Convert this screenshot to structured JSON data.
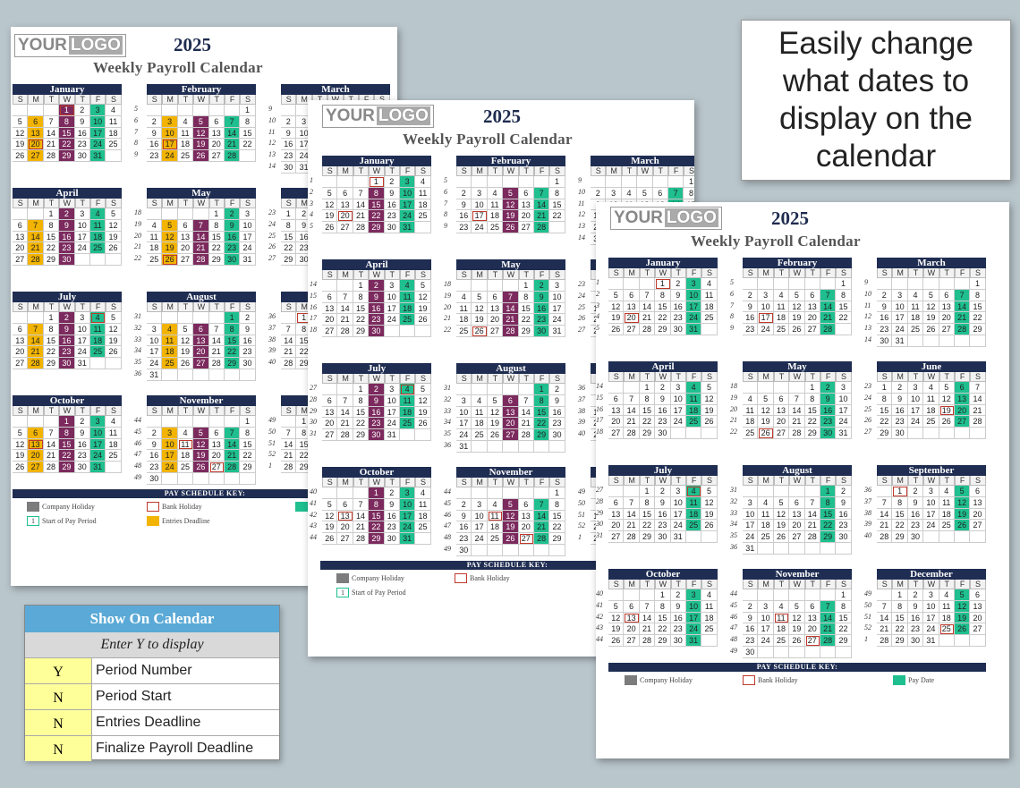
{
  "year": "2025",
  "title": "Weekly Payroll Calendar",
  "logo": {
    "part1": "YOUR",
    "part2": "LOGO"
  },
  "day_headers": [
    "S",
    "M",
    "T",
    "W",
    "T",
    "F",
    "S"
  ],
  "callout": "Easily change what dates to display on the calendar",
  "show_panel": {
    "header": "Show On Calendar",
    "subheader": "Enter Y to display",
    "rows": [
      {
        "value": "Y",
        "label": "Period Number"
      },
      {
        "value": "N",
        "label": "Period Start"
      },
      {
        "value": "N",
        "label": "Entries Deadline"
      },
      {
        "value": "N",
        "label": "Finalize Payroll Deadline"
      }
    ]
  },
  "key": {
    "title": "PAY SCHEDULE KEY:",
    "company_holiday": "Company Holiday",
    "bank_holiday": "Bank Holiday",
    "start_of_pay_period": "Start of Pay Period",
    "start_swatch": "1",
    "entries_deadline": "Entries Deadline",
    "pay_date": "Pay Date"
  },
  "colors": {
    "header": "#1f2d52",
    "pay": "#1fbf8f",
    "company": "#7c2a5e",
    "entries": "#f2b400",
    "bank": "#c0392b"
  },
  "months": [
    {
      "name": "January",
      "start": 3,
      "days": 31,
      "weeks": [
        "1",
        "2",
        "3",
        "4",
        "5"
      ],
      "pay": [
        3,
        10,
        17,
        24,
        31
      ],
      "comp": [],
      "bank": [
        1,
        20
      ],
      "entry": []
    },
    {
      "name": "February",
      "start": 6,
      "days": 28,
      "weeks": [
        "5",
        "6",
        "7",
        "8",
        "9"
      ],
      "pay": [
        7,
        14,
        21,
        28
      ],
      "comp": [],
      "bank": [
        17
      ],
      "entry": []
    },
    {
      "name": "March",
      "start": 6,
      "days": 31,
      "weeks": [
        "9",
        "10",
        "11",
        "12",
        "13",
        "14"
      ],
      "pay": [
        7,
        14,
        21,
        28
      ],
      "comp": [],
      "bank": [],
      "entry": []
    },
    {
      "name": "April",
      "start": 2,
      "days": 30,
      "weeks": [
        "14",
        "15",
        "16",
        "17",
        "18"
      ],
      "pay": [
        4,
        11,
        18,
        25
      ],
      "comp": [],
      "bank": [],
      "entry": []
    },
    {
      "name": "May",
      "start": 4,
      "days": 31,
      "weeks": [
        "18",
        "19",
        "20",
        "21",
        "22"
      ],
      "pay": [
        2,
        9,
        16,
        23,
        30
      ],
      "comp": [],
      "bank": [
        26
      ],
      "entry": []
    },
    {
      "name": "June",
      "start": 0,
      "days": 30,
      "weeks": [
        "23",
        "24",
        "25",
        "26",
        "27"
      ],
      "pay": [
        6,
        13,
        20,
        27
      ],
      "comp": [],
      "bank": [
        19
      ],
      "entry": []
    },
    {
      "name": "July",
      "start": 2,
      "days": 31,
      "weeks": [
        "27",
        "28",
        "29",
        "30",
        "31"
      ],
      "pay": [
        4,
        11,
        18,
        25
      ],
      "comp": [],
      "bank": [
        4
      ],
      "entry": []
    },
    {
      "name": "August",
      "start": 5,
      "days": 31,
      "weeks": [
        "31",
        "32",
        "33",
        "34",
        "35",
        "36"
      ],
      "pay": [
        1,
        8,
        15,
        22,
        29
      ],
      "comp": [],
      "bank": [],
      "entry": []
    },
    {
      "name": "September",
      "start": 1,
      "days": 30,
      "weeks": [
        "36",
        "37",
        "38",
        "39",
        "40"
      ],
      "pay": [
        5,
        12,
        19,
        26
      ],
      "comp": [],
      "bank": [
        1
      ],
      "entry": []
    },
    {
      "name": "October",
      "start": 3,
      "days": 31,
      "weeks": [
        "40",
        "41",
        "42",
        "43",
        "44"
      ],
      "pay": [
        3,
        10,
        17,
        24,
        31
      ],
      "comp": [],
      "bank": [
        13
      ],
      "entry": []
    },
    {
      "name": "November",
      "start": 6,
      "days": 30,
      "weeks": [
        "44",
        "45",
        "46",
        "47",
        "48",
        "49"
      ],
      "pay": [
        7,
        14,
        21,
        28
      ],
      "comp": [],
      "bank": [
        11,
        27
      ],
      "entry": []
    },
    {
      "name": "December",
      "start": 1,
      "days": 31,
      "weeks": [
        "49",
        "50",
        "51",
        "52",
        "1"
      ],
      "pay": [
        5,
        12,
        19,
        26
      ],
      "comp": [],
      "bank": [
        25
      ],
      "entry": []
    }
  ],
  "sheet_a_overrides": {
    "January": {
      "comp": [
        1,
        8,
        15,
        22,
        29
      ],
      "entry": [
        6,
        13,
        20,
        27
      ],
      "pay": [
        3,
        10,
        17,
        24,
        31
      ]
    },
    "February": {
      "comp": [
        5,
        12,
        19,
        26
      ],
      "entry": [
        3,
        10,
        17,
        24
      ],
      "pay": [
        7,
        14,
        21,
        28
      ]
    },
    "April": {
      "comp": [
        2,
        9,
        16,
        23,
        30
      ],
      "entry": [
        7,
        14,
        21,
        28
      ],
      "pay": [
        4,
        11,
        18,
        25
      ]
    },
    "May": {
      "comp": [
        7,
        14,
        21,
        28
      ],
      "entry": [
        5,
        12,
        19,
        26
      ],
      "pay": [
        2,
        9,
        16,
        23,
        30
      ]
    },
    "July": {
      "comp": [
        2,
        9,
        16,
        23,
        30
      ],
      "entry": [
        7,
        14,
        21,
        28
      ],
      "pay": [
        4,
        11,
        18,
        25
      ]
    },
    "August": {
      "comp": [
        6,
        13,
        20,
        27
      ],
      "entry": [
        4,
        11,
        18,
        25
      ],
      "pay": [
        1,
        8,
        15,
        22,
        29
      ]
    },
    "October": {
      "comp": [
        1,
        8,
        15,
        22,
        29
      ],
      "entry": [
        6,
        13,
        20,
        27
      ],
      "pay": [
        3,
        10,
        17,
        24,
        31
      ]
    },
    "November": {
      "comp": [
        5,
        12,
        19,
        26
      ],
      "entry": [
        3,
        10,
        17,
        24
      ],
      "pay": [
        7,
        14,
        21,
        28
      ]
    }
  },
  "sheet_b_overrides": {
    "January": {
      "comp": [
        8,
        15,
        22,
        29
      ]
    },
    "February": {
      "comp": [
        5,
        12,
        19,
        26
      ]
    },
    "April": {
      "comp": [
        2,
        9,
        16,
        23,
        30
      ]
    },
    "May": {
      "comp": [
        7,
        14,
        21,
        28
      ]
    },
    "July": {
      "comp": [
        2,
        9,
        16,
        23,
        30
      ]
    },
    "August": {
      "comp": [
        6,
        13,
        20,
        27
      ]
    },
    "October": {
      "comp": [
        1,
        8,
        15,
        22,
        29
      ]
    },
    "November": {
      "comp": [
        5,
        12,
        19,
        26
      ]
    }
  }
}
